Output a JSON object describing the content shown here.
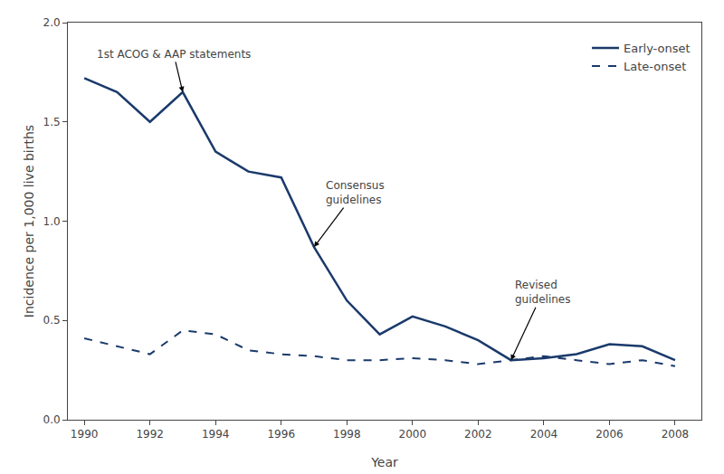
{
  "chart_data": {
    "type": "line",
    "xlabel": "Year",
    "ylabel": "Incidence per 1,000 live births",
    "x": [
      1990,
      1991,
      1992,
      1993,
      1994,
      1995,
      1996,
      1997,
      1998,
      1999,
      2000,
      2001,
      2002,
      2003,
      2004,
      2005,
      2006,
      2007,
      2008
    ],
    "series": [
      {
        "name": "Early-onset",
        "color": "#1a3a6b",
        "line_style": "solid",
        "values": [
          1.72,
          1.65,
          1.5,
          1.65,
          1.35,
          1.25,
          1.22,
          0.87,
          0.6,
          0.43,
          0.52,
          0.47,
          0.4,
          0.3,
          0.31,
          0.33,
          0.38,
          0.37,
          0.3
        ]
      },
      {
        "name": "Late-onset",
        "color": "#1a3a6b",
        "line_style": "dashed",
        "values": [
          0.41,
          0.37,
          0.33,
          0.45,
          0.43,
          0.35,
          0.33,
          0.32,
          0.3,
          0.3,
          0.31,
          0.3,
          0.28,
          0.3,
          0.32,
          0.3,
          0.28,
          0.3,
          0.27
        ]
      }
    ],
    "xlim": [
      1989.5,
      2008.8
    ],
    "xticks": [
      1990,
      1992,
      1994,
      1996,
      1998,
      2000,
      2002,
      2004,
      2006,
      2008
    ],
    "ylim": [
      0.0,
      2.0
    ],
    "yticks": [
      {
        "value": 0.0,
        "label": "0.0"
      },
      0.5,
      {
        "value": 1.0,
        "label": "1.0"
      },
      1.5,
      {
        "value": 2.0,
        "label": "2.0"
      }
    ],
    "grid": false,
    "legend": "upper right",
    "annotations": [
      {
        "text": "1st ACOG & AAP statements",
        "x": 1993,
        "y": 1.65
      },
      {
        "text": "Consensus\nguidelines",
        "x": 1997,
        "y": 0.87
      },
      {
        "text": "Revised\nguidelines",
        "x": 2003,
        "y": 0.3
      }
    ]
  }
}
